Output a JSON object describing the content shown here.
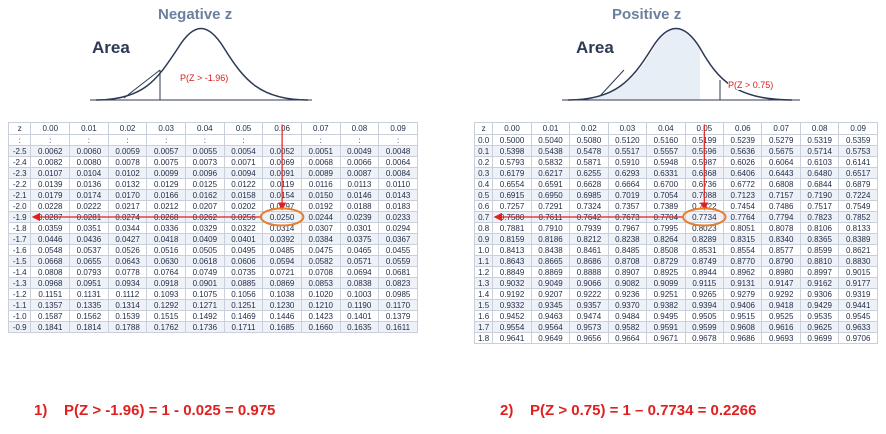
{
  "left": {
    "title": "Negative z",
    "area_label": "Area",
    "callout": "P(Z > -1.96)",
    "result": "1)    P(Z > -1.96) = 1 - 0.025 = 0.975",
    "headers": [
      "z",
      "0.00",
      "0.01",
      "0.02",
      "0.03",
      "0.04",
      "0.05",
      "0.06",
      "0.07",
      "0.08",
      "0.09"
    ],
    "rows": [
      [
        ":",
        ":",
        ":",
        ":",
        ":",
        ":",
        ":",
        ":",
        ":",
        ":",
        ":"
      ],
      [
        "-2.5",
        "0.0062",
        "0.0060",
        "0.0059",
        "0.0057",
        "0.0055",
        "0.0054",
        "0.0052",
        "0.0051",
        "0.0049",
        "0.0048"
      ],
      [
        "-2.4",
        "0.0082",
        "0.0080",
        "0.0078",
        "0.0075",
        "0.0073",
        "0.0071",
        "0.0069",
        "0.0068",
        "0.0066",
        "0.0064"
      ],
      [
        "-2.3",
        "0.0107",
        "0.0104",
        "0.0102",
        "0.0099",
        "0.0096",
        "0.0094",
        "0.0091",
        "0.0089",
        "0.0087",
        "0.0084"
      ],
      [
        "-2.2",
        "0.0139",
        "0.0136",
        "0.0132",
        "0.0129",
        "0.0125",
        "0.0122",
        "0.0119",
        "0.0116",
        "0.0113",
        "0.0110"
      ],
      [
        "-2.1",
        "0.0179",
        "0.0174",
        "0.0170",
        "0.0166",
        "0.0162",
        "0.0158",
        "0.0154",
        "0.0150",
        "0.0146",
        "0.0143"
      ],
      [
        "-2.0",
        "0.0228",
        "0.0222",
        "0.0217",
        "0.0212",
        "0.0207",
        "0.0202",
        "0.0197",
        "0.0192",
        "0.0188",
        "0.0183"
      ],
      [
        "-1.9",
        "0.0287",
        "0.0281",
        "0.0274",
        "0.0268",
        "0.0262",
        "0.0256",
        "0.0250",
        "0.0244",
        "0.0239",
        "0.0233"
      ],
      [
        "-1.8",
        "0.0359",
        "0.0351",
        "0.0344",
        "0.0336",
        "0.0329",
        "0.0322",
        "0.0314",
        "0.0307",
        "0.0301",
        "0.0294"
      ],
      [
        "-1.7",
        "0.0446",
        "0.0436",
        "0.0427",
        "0.0418",
        "0.0409",
        "0.0401",
        "0.0392",
        "0.0384",
        "0.0375",
        "0.0367"
      ],
      [
        "-1.6",
        "0.0548",
        "0.0537",
        "0.0526",
        "0.0516",
        "0.0505",
        "0.0495",
        "0.0485",
        "0.0475",
        "0.0465",
        "0.0455"
      ],
      [
        "-1.5",
        "0.0668",
        "0.0655",
        "0.0643",
        "0.0630",
        "0.0618",
        "0.0606",
        "0.0594",
        "0.0582",
        "0.0571",
        "0.0559"
      ],
      [
        "-1.4",
        "0.0808",
        "0.0793",
        "0.0778",
        "0.0764",
        "0.0749",
        "0.0735",
        "0.0721",
        "0.0708",
        "0.0694",
        "0.0681"
      ],
      [
        "-1.3",
        "0.0968",
        "0.0951",
        "0.0934",
        "0.0918",
        "0.0901",
        "0.0885",
        "0.0869",
        "0.0853",
        "0.0838",
        "0.0823"
      ],
      [
        "-1.2",
        "0.1151",
        "0.1131",
        "0.1112",
        "0.1093",
        "0.1075",
        "0.1056",
        "0.1038",
        "0.1020",
        "0.1003",
        "0.0985"
      ],
      [
        "-1.1",
        "0.1357",
        "0.1335",
        "0.1314",
        "0.1292",
        "0.1271",
        "0.1251",
        "0.1230",
        "0.1210",
        "0.1190",
        "0.1170"
      ],
      [
        "-1.0",
        "0.1587",
        "0.1562",
        "0.1539",
        "0.1515",
        "0.1492",
        "0.1469",
        "0.1446",
        "0.1423",
        "0.1401",
        "0.1379"
      ],
      [
        "-0.9",
        "0.1841",
        "0.1814",
        "0.1788",
        "0.1762",
        "0.1736",
        "0.1711",
        "0.1685",
        "0.1660",
        "0.1635",
        "0.1611"
      ]
    ],
    "highlight": {
      "row": 7,
      "col": 7
    }
  },
  "right": {
    "title": "Positive z",
    "area_label": "Area",
    "callout": "P(Z > 0.75)",
    "result": "2)    P(Z > 0.75) = 1 – 0.7734 = 0.2266",
    "headers": [
      "z",
      "0.00",
      "0.01",
      "0.02",
      "0.03",
      "0.04",
      "0.05",
      "0.06",
      "0.07",
      "0.08",
      "0.09"
    ],
    "rows": [
      [
        "0.0",
        "0.5000",
        "0.5040",
        "0.5080",
        "0.5120",
        "0.5160",
        "0.5199",
        "0.5239",
        "0.5279",
        "0.5319",
        "0.5359"
      ],
      [
        "0.1",
        "0.5398",
        "0.5438",
        "0.5478",
        "0.5517",
        "0.5557",
        "0.5596",
        "0.5636",
        "0.5675",
        "0.5714",
        "0.5753"
      ],
      [
        "0.2",
        "0.5793",
        "0.5832",
        "0.5871",
        "0.5910",
        "0.5948",
        "0.5987",
        "0.6026",
        "0.6064",
        "0.6103",
        "0.6141"
      ],
      [
        "0.3",
        "0.6179",
        "0.6217",
        "0.6255",
        "0.6293",
        "0.6331",
        "0.6368",
        "0.6406",
        "0.6443",
        "0.6480",
        "0.6517"
      ],
      [
        "0.4",
        "0.6554",
        "0.6591",
        "0.6628",
        "0.6664",
        "0.6700",
        "0.6736",
        "0.6772",
        "0.6808",
        "0.6844",
        "0.6879"
      ],
      [
        "0.5",
        "0.6915",
        "0.6950",
        "0.6985",
        "0.7019",
        "0.7054",
        "0.7088",
        "0.7123",
        "0.7157",
        "0.7190",
        "0.7224"
      ],
      [
        "0.6",
        "0.7257",
        "0.7291",
        "0.7324",
        "0.7357",
        "0.7389",
        "0.7422",
        "0.7454",
        "0.7486",
        "0.7517",
        "0.7549"
      ],
      [
        "0.7",
        "0.7580",
        "0.7611",
        "0.7642",
        "0.7673",
        "0.7704",
        "0.7734",
        "0.7764",
        "0.7794",
        "0.7823",
        "0.7852"
      ],
      [
        "0.8",
        "0.7881",
        "0.7910",
        "0.7939",
        "0.7967",
        "0.7995",
        "0.8023",
        "0.8051",
        "0.8078",
        "0.8106",
        "0.8133"
      ],
      [
        "0.9",
        "0.8159",
        "0.8186",
        "0.8212",
        "0.8238",
        "0.8264",
        "0.8289",
        "0.8315",
        "0.8340",
        "0.8365",
        "0.8389"
      ],
      [
        "1.0",
        "0.8413",
        "0.8438",
        "0.8461",
        "0.8485",
        "0.8508",
        "0.8531",
        "0.8554",
        "0.8577",
        "0.8599",
        "0.8621"
      ],
      [
        "1.1",
        "0.8643",
        "0.8665",
        "0.8686",
        "0.8708",
        "0.8729",
        "0.8749",
        "0.8770",
        "0.8790",
        "0.8810",
        "0.8830"
      ],
      [
        "1.2",
        "0.8849",
        "0.8869",
        "0.8888",
        "0.8907",
        "0.8925",
        "0.8944",
        "0.8962",
        "0.8980",
        "0.8997",
        "0.9015"
      ],
      [
        "1.3",
        "0.9032",
        "0.9049",
        "0.9066",
        "0.9082",
        "0.9099",
        "0.9115",
        "0.9131",
        "0.9147",
        "0.9162",
        "0.9177"
      ],
      [
        "1.4",
        "0.9192",
        "0.9207",
        "0.9222",
        "0.9236",
        "0.9251",
        "0.9265",
        "0.9279",
        "0.9292",
        "0.9306",
        "0.9319"
      ],
      [
        "1.5",
        "0.9332",
        "0.9345",
        "0.9357",
        "0.9370",
        "0.9382",
        "0.9394",
        "0.9406",
        "0.9418",
        "0.9429",
        "0.9441"
      ],
      [
        "1.6",
        "0.9452",
        "0.9463",
        "0.9474",
        "0.9484",
        "0.9495",
        "0.9505",
        "0.9515",
        "0.9525",
        "0.9535",
        "0.9545"
      ],
      [
        "1.7",
        "0.9554",
        "0.9564",
        "0.9573",
        "0.9582",
        "0.9591",
        "0.9599",
        "0.9608",
        "0.9616",
        "0.9625",
        "0.9633"
      ],
      [
        "1.8",
        "0.9641",
        "0.9649",
        "0.9656",
        "0.9664",
        "0.9671",
        "0.9678",
        "0.9686",
        "0.9693",
        "0.9699",
        "0.9706"
      ]
    ],
    "highlight": {
      "row": 7,
      "col": 6
    }
  }
}
